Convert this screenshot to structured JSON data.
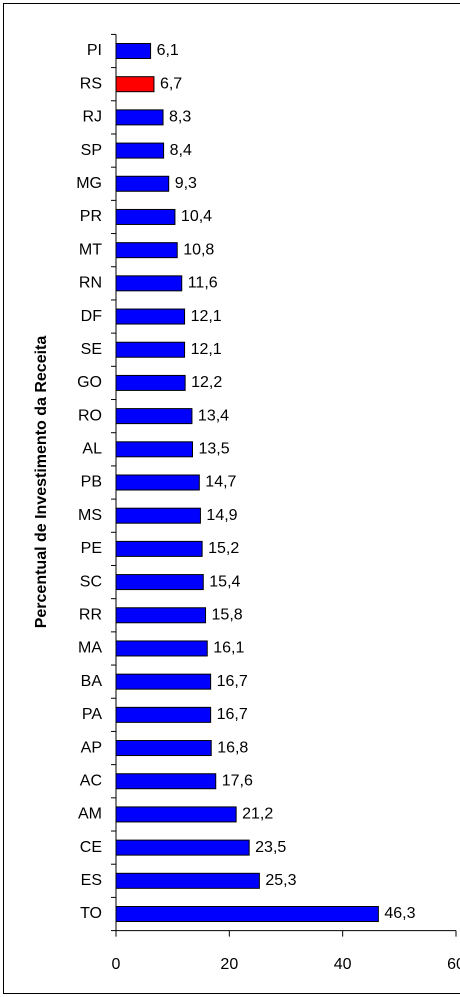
{
  "chart_data": {
    "type": "hbar",
    "ylabel": "Percentual de Investimento da Receita",
    "categories": [
      "PI",
      "RS",
      "RJ",
      "SP",
      "MG",
      "PR",
      "MT",
      "RN",
      "DF",
      "SE",
      "GO",
      "RO",
      "AL",
      "PB",
      "MS",
      "PE",
      "SC",
      "RR",
      "MA",
      "BA",
      "PA",
      "AP",
      "AC",
      "AM",
      "CE",
      "ES",
      "TO"
    ],
    "values": [
      6.1,
      6.7,
      8.3,
      8.4,
      9.3,
      10.4,
      10.8,
      11.6,
      12.1,
      12.1,
      12.2,
      13.4,
      13.5,
      14.7,
      14.9,
      15.2,
      15.4,
      15.8,
      16.1,
      16.7,
      16.7,
      16.8,
      17.6,
      21.2,
      23.5,
      25.3,
      46.3
    ],
    "value_labels": [
      "6,1",
      "6,7",
      "8,3",
      "8,4",
      "9,3",
      "10,4",
      "10,8",
      "11,6",
      "12,1",
      "12,1",
      "12,2",
      "13,4",
      "13,5",
      "14,7",
      "14,9",
      "15,2",
      "15,4",
      "15,8",
      "16,1",
      "16,7",
      "16,7",
      "16,8",
      "17,6",
      "21,2",
      "23,5",
      "25,3",
      "46,3"
    ],
    "colors": [
      "#0000ff",
      "#ff0000",
      "#0000ff",
      "#0000ff",
      "#0000ff",
      "#0000ff",
      "#0000ff",
      "#0000ff",
      "#0000ff",
      "#0000ff",
      "#0000ff",
      "#0000ff",
      "#0000ff",
      "#0000ff",
      "#0000ff",
      "#0000ff",
      "#0000ff",
      "#0000ff",
      "#0000ff",
      "#0000ff",
      "#0000ff",
      "#0000ff",
      "#0000ff",
      "#0000ff",
      "#0000ff",
      "#0000ff",
      "#0000ff"
    ],
    "xlim": [
      0,
      60
    ],
    "xticks": [
      0,
      20,
      40,
      60
    ]
  }
}
